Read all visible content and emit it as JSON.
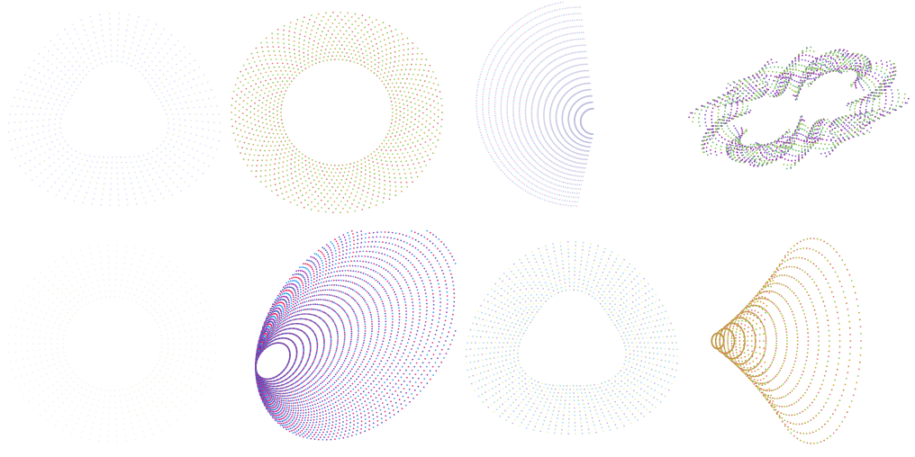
{
  "figures": [
    {
      "shape": "torus-dotted",
      "palette": [
        "#c7b8ff",
        "#bfe6b0",
        "#d9c2f5",
        "#b6d7ff"
      ],
      "density": "sparse",
      "opacity": 0.55
    },
    {
      "shape": "ring-spokes",
      "palette": [
        "#9bd55f",
        "#e0a05a",
        "#8bc34a",
        "#e57373"
      ],
      "density": "medium",
      "opacity": 0.95
    },
    {
      "shape": "half-dome",
      "palette": [
        "#f48fb1",
        "#90caf9",
        "#ce93d8",
        "#80deea"
      ],
      "density": "dense",
      "opacity": 0.55
    },
    {
      "shape": "twisted-torus",
      "palette": [
        "#7e57c2",
        "#66bb6a",
        "#8bc34a",
        "#9c27b0"
      ],
      "density": "dense",
      "opacity": 0.95
    },
    {
      "shape": "faint-ring",
      "palette": [
        "#e6ecc8",
        "#f0e0c8",
        "#e9e1f7"
      ],
      "density": "sparse",
      "opacity": 0.45
    },
    {
      "shape": "twisted-cone",
      "palette": [
        "#e91e63",
        "#3f51b5",
        "#9c27b0",
        "#2196f3"
      ],
      "density": "very-dense",
      "opacity": 0.9
    },
    {
      "shape": "torus-dotted",
      "palette": [
        "#b39ddb",
        "#a5d6a7",
        "#90caf9",
        "#e6ee9c"
      ],
      "density": "medium",
      "opacity": 0.75
    },
    {
      "shape": "shell-cone",
      "palette": [
        "#c0803a",
        "#e57373",
        "#8bc34a",
        "#d4a017"
      ],
      "density": "medium",
      "opacity": 0.95
    }
  ]
}
